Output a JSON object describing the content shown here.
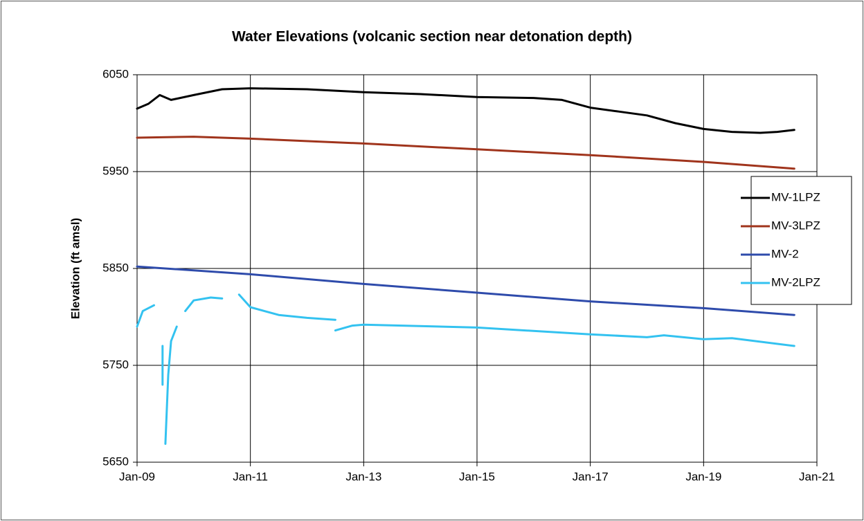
{
  "chart_data": {
    "type": "line",
    "title": "Water Elevations (volcanic section near detonation depth)",
    "y_label": "Elevation (ft amsl)",
    "xlim": [
      2009,
      2021
    ],
    "xticks": [
      {
        "value": 2009,
        "label": "Jan-09"
      },
      {
        "value": 2011,
        "label": "Jan-11"
      },
      {
        "value": 2013,
        "label": "Jan-13"
      },
      {
        "value": 2015,
        "label": "Jan-15"
      },
      {
        "value": 2017,
        "label": "Jan-17"
      },
      {
        "value": 2019,
        "label": "Jan-19"
      },
      {
        "value": 2021,
        "label": "Jan-21"
      }
    ],
    "ylim": [
      5650,
      6050
    ],
    "yticks": [
      5650,
      5750,
      5850,
      5950,
      6050
    ],
    "grid": true,
    "legend": "right",
    "series": [
      {
        "name": "MV-1LPZ",
        "color": "#000000",
        "x": [
          2009,
          2009.2,
          2009.4,
          2009.6,
          2010,
          2010.5,
          2011,
          2012,
          2013,
          2014,
          2015,
          2016,
          2016.5,
          2017,
          2017.5,
          2018,
          2018.5,
          2019,
          2019.5,
          2020,
          2020.3,
          2020.6
        ],
        "values": [
          6015,
          6020,
          6029,
          6024,
          6029,
          6035,
          6036,
          6035,
          6032,
          6030,
          6027,
          6026,
          6024,
          6016,
          6012,
          6008,
          6000,
          5994,
          5991,
          5990,
          5991,
          5993
        ]
      },
      {
        "name": "MV-3LPZ",
        "color": "#a0341c",
        "x": [
          2009,
          2010,
          2011,
          2013,
          2015,
          2017,
          2019,
          2020.6
        ],
        "values": [
          5985,
          5986,
          5984,
          5979,
          5973,
          5967,
          5960,
          5953
        ]
      },
      {
        "name": "MV-2",
        "color": "#2e4bab",
        "x": [
          2009,
          2011,
          2013,
          2015,
          2017,
          2019,
          2020.6
        ],
        "values": [
          5852,
          5844,
          5834,
          5825,
          5816,
          5809,
          5802
        ]
      },
      {
        "name": "MV-2LPZ",
        "color": "#33c2f0",
        "x": [
          2009,
          2009.1,
          2009.3,
          2009.4,
          2009.45,
          2009.45,
          2009.5,
          2009.5,
          2009.55,
          2009.6,
          2009.7,
          2009.75,
          2009.85,
          2010,
          2010.3,
          2010.5,
          2010.6,
          2010.8,
          2011,
          2011.5,
          2012,
          2012.5,
          2012.55,
          2012.5,
          2012.8,
          2013,
          2015,
          2017,
          2018,
          2018.3,
          2019,
          2019.5,
          2020.6
        ],
        "values": [
          5790,
          5806,
          5812,
          null,
          5770,
          5730,
          null,
          5669,
          5740,
          5775,
          5790,
          null,
          5806,
          5817,
          5820,
          5819,
          null,
          5823,
          5810,
          5802,
          5799,
          5797,
          null,
          5786,
          5791,
          5792,
          5789,
          5782,
          5779,
          5781,
          5777,
          5778,
          5770
        ]
      }
    ]
  }
}
